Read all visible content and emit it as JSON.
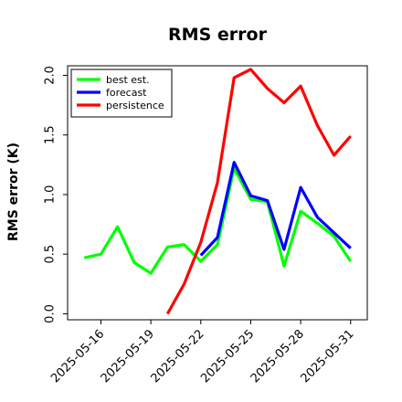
{
  "chart_data": {
    "type": "line",
    "title": "RMS error",
    "xlabel": "",
    "ylabel": "RMS error (K)",
    "x": [
      "2025-05-15",
      "2025-05-16",
      "2025-05-17",
      "2025-05-18",
      "2025-05-19",
      "2025-05-20",
      "2025-05-21",
      "2025-05-22",
      "2025-05-23",
      "2025-05-24",
      "2025-05-25",
      "2025-05-26",
      "2025-05-27",
      "2025-05-28",
      "2025-05-29",
      "2025-05-30",
      "2025-05-31"
    ],
    "xticks": [
      "2025-05-16",
      "2025-05-19",
      "2025-05-22",
      "2025-05-25",
      "2025-05-28",
      "2025-05-31"
    ],
    "xtick_colors": [
      "#000000",
      "#000000",
      "#008000",
      "#000000",
      "#000000",
      "#000000"
    ],
    "xlim": [
      "2025-05-14",
      "2025-06-01"
    ],
    "ylim": [
      -0.05,
      2.08
    ],
    "yticks": [
      "0.0",
      "0.5",
      "1.0",
      "1.5",
      "2.0"
    ],
    "grid": false,
    "legend_position": "top-left",
    "series": [
      {
        "name": "best est.",
        "color": "#00ff00",
        "values": [
          0.47,
          0.5,
          0.73,
          0.43,
          0.34,
          0.56,
          0.58,
          0.44,
          0.58,
          1.22,
          0.96,
          0.94,
          0.4,
          0.86,
          0.76,
          0.65,
          0.44
        ]
      },
      {
        "name": "forecast",
        "color": "#0000ff",
        "values": [
          null,
          null,
          null,
          null,
          null,
          null,
          null,
          0.49,
          0.64,
          1.27,
          0.99,
          0.95,
          0.54,
          1.06,
          0.81,
          0.68,
          0.55
        ]
      },
      {
        "name": "persistence",
        "color": "#ff0000",
        "values": [
          null,
          null,
          null,
          null,
          null,
          0.0,
          0.25,
          0.6,
          1.1,
          1.98,
          2.05,
          1.89,
          1.77,
          1.91,
          1.58,
          1.33,
          1.49
        ]
      }
    ]
  }
}
